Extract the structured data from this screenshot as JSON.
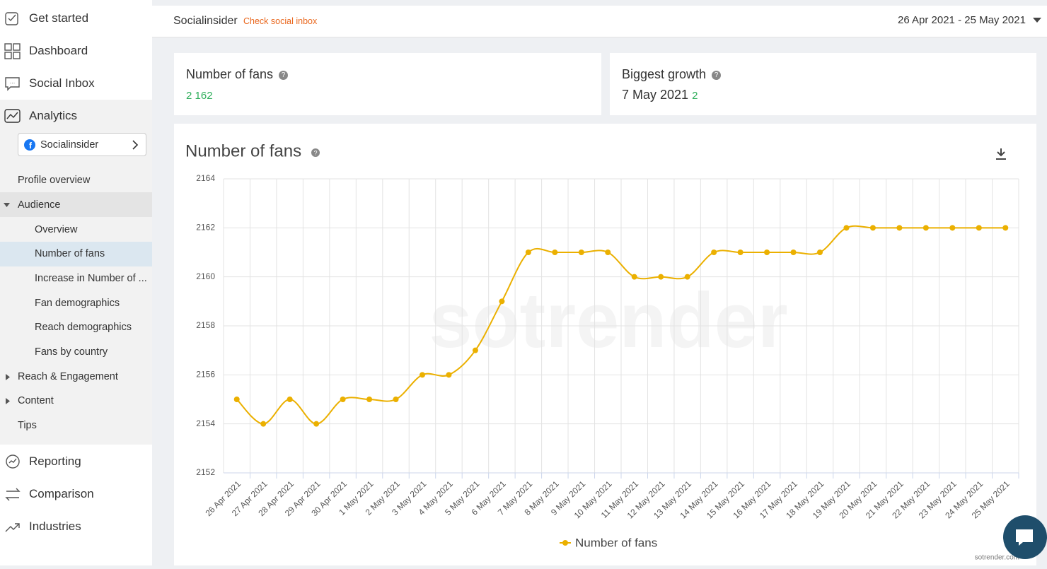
{
  "header": {
    "account": "Socialinsider",
    "inbox_link": "Check social inbox",
    "date_range": "26 Apr 2021 - 25 May 2021"
  },
  "sidebar": {
    "nav_top": [
      "Get started",
      "Dashboard",
      "Social Inbox",
      "Analytics"
    ],
    "profile": "Socialinsider",
    "submenu": [
      "Profile overview",
      "Audience",
      "Overview",
      "Number of fans",
      "Increase in Number of ...",
      "Fan demographics",
      "Reach demographics",
      "Fans by country",
      "Reach & Engagement",
      "Content",
      "Tips"
    ],
    "nav_bottom": [
      "Reporting",
      "Comparison",
      "Industries"
    ]
  },
  "cards": [
    {
      "title": "Number of fans",
      "value": "2 162"
    },
    {
      "title": "Biggest growth",
      "date": "7 May 2021",
      "value": 2
    }
  ],
  "watermark": "sotrender",
  "footer": "sotrender.com",
  "chart_data": {
    "type": "line",
    "title": "Number of fans",
    "categories": [
      "26 Apr 2021",
      "27 Apr 2021",
      "28 Apr 2021",
      "29 Apr 2021",
      "30 Apr 2021",
      "1 May 2021",
      "2 May 2021",
      "3 May 2021",
      "4 May 2021",
      "5 May 2021",
      "6 May 2021",
      "7 May 2021",
      "8 May 2021",
      "9 May 2021",
      "10 May 2021",
      "11 May 2021",
      "12 May 2021",
      "13 May 2021",
      "14 May 2021",
      "15 May 2021",
      "16 May 2021",
      "17 May 2021",
      "18 May 2021",
      "19 May 2021",
      "20 May 2021",
      "21 May 2021",
      "22 May 2021",
      "23 May 2021",
      "24 May 2021",
      "25 May 2021"
    ],
    "series": [
      {
        "name": "Number of fans",
        "color": "#ebb000",
        "values": [
          2155,
          2154,
          2155,
          2154,
          2155,
          2155,
          2155,
          2156,
          2156,
          2157,
          2159,
          2161,
          2161,
          2161,
          2161,
          2160,
          2160,
          2160,
          2161,
          2161,
          2161,
          2161,
          2161,
          2162,
          2162,
          2162,
          2162,
          2162,
          2162,
          2162
        ]
      }
    ],
    "ylim": [
      2152,
      2164
    ],
    "yticks": [
      2152,
      2154,
      2156,
      2158,
      2160,
      2162,
      2164
    ],
    "grid": true,
    "legend": "bottom"
  }
}
